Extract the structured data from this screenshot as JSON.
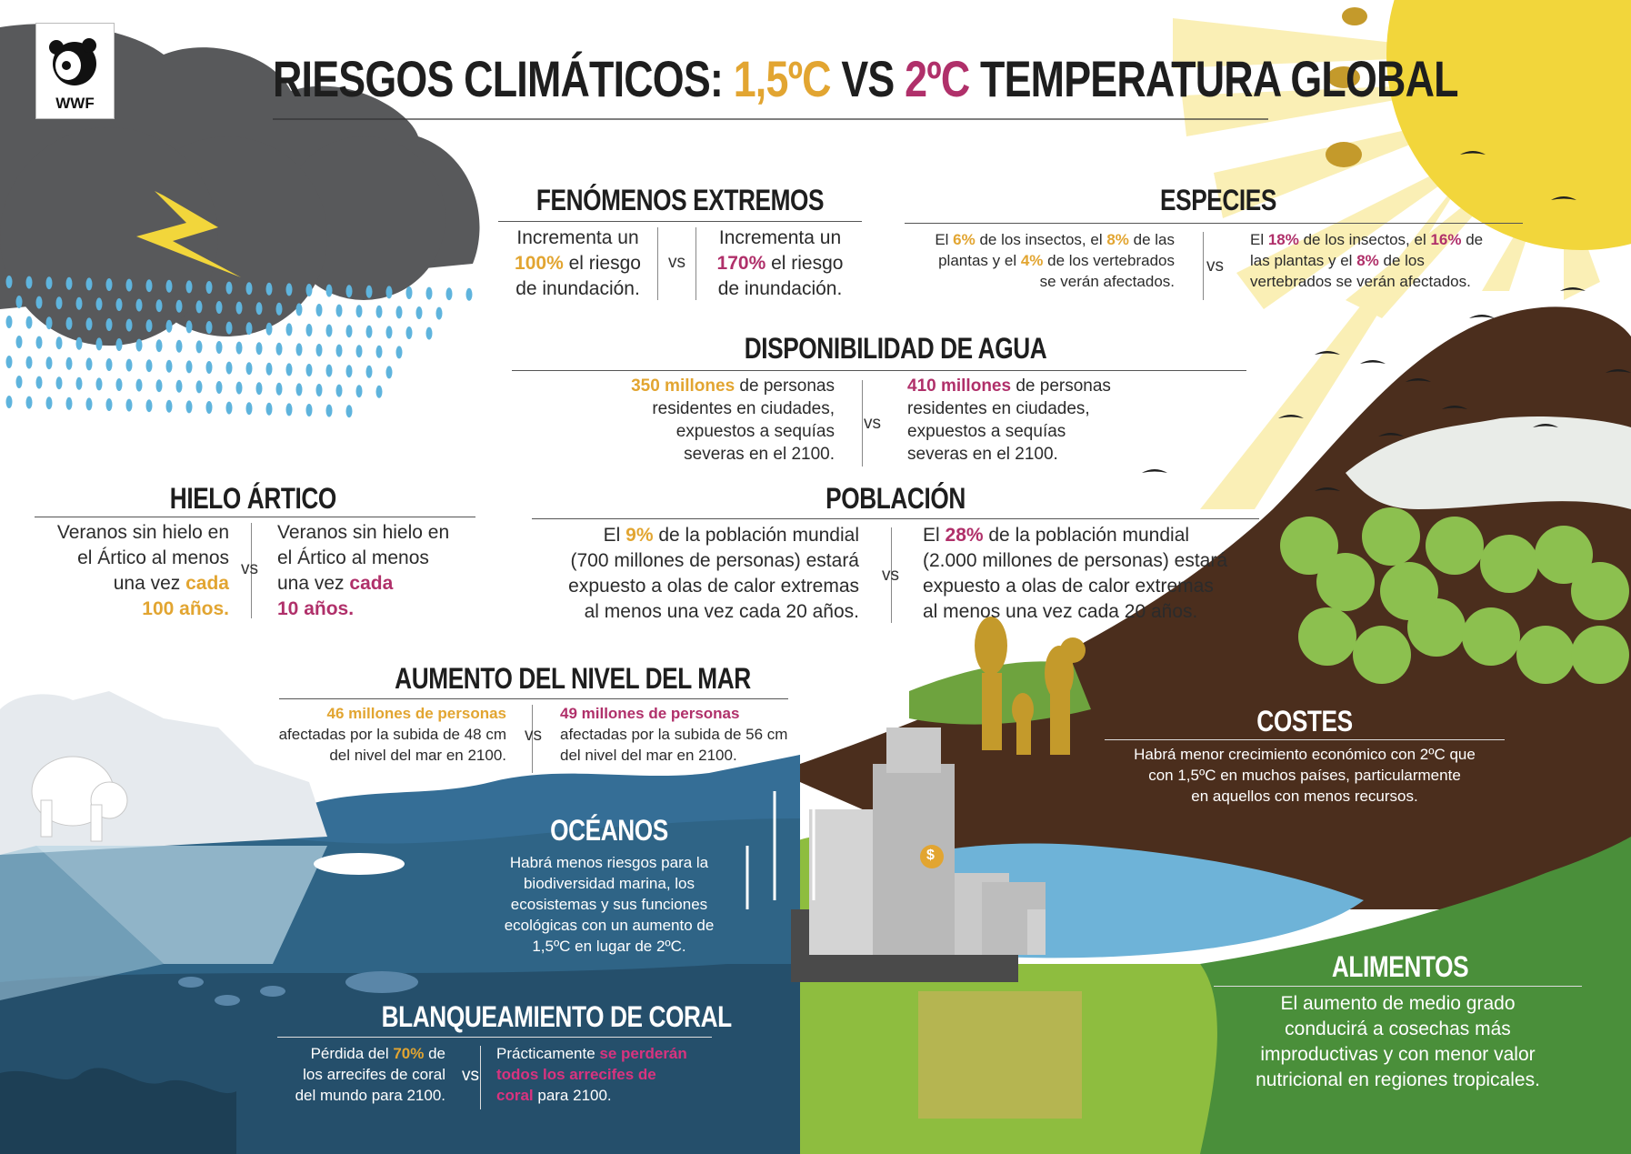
{
  "colors": {
    "accent_15": "#e2a531",
    "accent_2": "#b0306a",
    "sun": "#f2d63b",
    "cloud": "#58595b",
    "ocean": "#2f6486",
    "land_green": "#4a8f3a"
  },
  "logo": {
    "text": "WWF"
  },
  "title": {
    "part1": "RIESGOS CLIMÁTICOS:",
    "t15": "1,5ºC",
    "vs": "VS",
    "t2": "2ºC",
    "part2": "TEMPERATURA GLOBAL"
  },
  "vs": "vs",
  "extremos": {
    "heading": "FENÓMENOS EXTREMOS",
    "left": {
      "a": "Incrementa un",
      "b": "100%",
      "c": " el riesgo",
      "d": "de inundación."
    },
    "right": {
      "a": "Incrementa un",
      "b": "170%",
      "c": " el riesgo",
      "d": "de inundación."
    }
  },
  "especies": {
    "heading": "ESPECIES",
    "left": {
      "a": "El ",
      "b": "6%",
      "c": " de los insectos, el ",
      "d": "8%",
      "e": " de las",
      "f": "plantas y el ",
      "g": "4%",
      "h": " de los vertebrados",
      "i": "se verán afectados."
    },
    "right": {
      "a": "El ",
      "b": "18%",
      "c": " de los insectos, el ",
      "d": "16%",
      "e": " de",
      "f": "las plantas y el ",
      "g": "8%",
      "h": " de los",
      "i": "vertebrados se verán afectados."
    }
  },
  "agua": {
    "heading": "DISPONIBILIDAD DE AGUA",
    "left": {
      "b": "350 millones",
      "c": " de personas",
      "d": "residentes en ciudades,",
      "e": "expuestos a sequías",
      "f": "severas en el 2100."
    },
    "right": {
      "b": "410 millones",
      "c": " de personas",
      "d": "residentes en ciudades,",
      "e": "expuestos a sequías",
      "f": "severas en el 2100."
    }
  },
  "hielo": {
    "heading": "HIELO ÁRTICO",
    "left": {
      "a": "Veranos sin hielo en",
      "b": "el Ártico al menos",
      "c": "una vez ",
      "d": "cada",
      "e": "100 años."
    },
    "right": {
      "a": "Veranos sin hielo en",
      "b": "el Ártico al menos",
      "c": "una vez ",
      "d": "cada",
      "e": "10 años."
    }
  },
  "poblacion": {
    "heading": "POBLACIÓN",
    "left": {
      "a": "El ",
      "b": "9%",
      "c": " de la población mundial",
      "d": "(700 millones de personas) estará",
      "e": "expuesto a olas de calor extremas",
      "f": "al menos una vez cada 20 años."
    },
    "right": {
      "a": "El ",
      "b": "28%",
      "c": " de la población mundial",
      "d": "(2.000 millones de personas) estará",
      "e": "expuesto a olas de calor extremas",
      "f": "al menos una vez cada 20 años."
    }
  },
  "mar": {
    "heading": "AUMENTO DEL NIVEL DEL MAR",
    "left": {
      "b": "46 millones de personas",
      "c": "afectadas por la subida de 48 cm",
      "d": "del nivel del mar en 2100."
    },
    "right": {
      "b": "49 millones de personas",
      "c": "afectadas por la subida de 56 cm",
      "d": "del nivel del mar en 2100."
    }
  },
  "costes": {
    "heading": "COSTES",
    "l1": "Habrá menor crecimiento económico con 2ºC que",
    "l2": "con 1,5ºC en muchos países, particularmente",
    "l3": "en aquellos con menos recursos."
  },
  "oceanos": {
    "heading": "OCÉANOS",
    "l1": "Habrá menos riesgos para la",
    "l2": "biodiversidad marina, los",
    "l3": "ecosistemas y sus funciones",
    "l4": "ecológicas con un aumento de",
    "l5": "1,5ºC en lugar de 2ºC."
  },
  "coral": {
    "heading": "BLANQUEAMIENTO DE CORAL",
    "left": {
      "a": "Pérdida del ",
      "b": "70%",
      "c": " de",
      "d": "los arrecifes de coral",
      "e": "del mundo para 2100."
    },
    "right": {
      "a": "Prácticamente ",
      "b": "se perderán",
      "c": "todos los arrecifes de",
      "d": "coral",
      "e": " para 2100."
    }
  },
  "alimentos": {
    "heading": "ALIMENTOS",
    "l1": "El aumento de medio grado",
    "l2": "conducirá a cosechas más",
    "l3": "improductivas y con menor valor",
    "l4": "nutricional en regiones tropicales."
  },
  "icons": {
    "logo": "panda-logo",
    "sun": "sun-icon",
    "cloud": "storm-cloud-icon",
    "lightning": "lightning-icon",
    "dollar": "dollar-coin-icon"
  },
  "coin_label": "$"
}
